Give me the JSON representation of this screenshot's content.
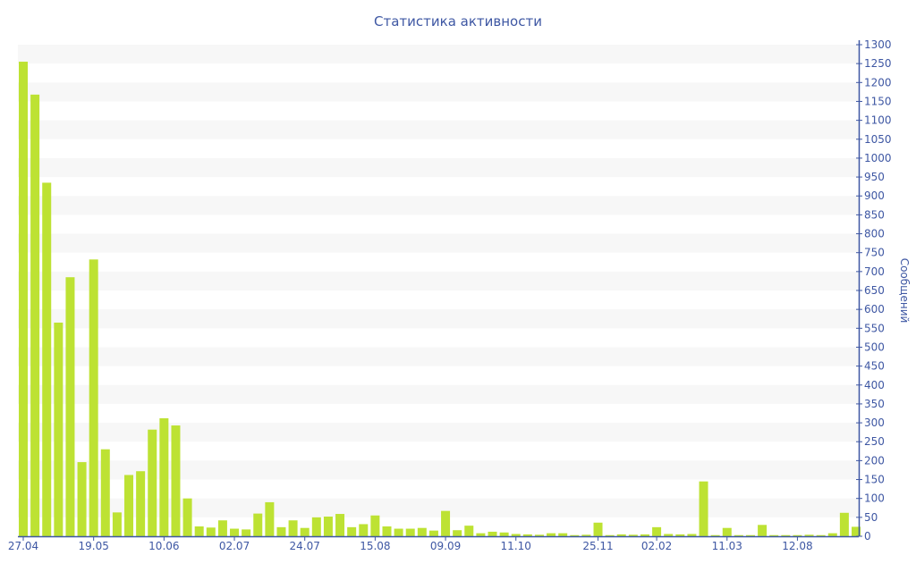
{
  "chart_data": {
    "type": "bar",
    "title": "Статистика активности",
    "ylabel": "Сообщений",
    "xlabel": "",
    "ylim": [
      0,
      1300
    ],
    "ytick_step": 50,
    "y_axis_position": "right",
    "grid": "alternating horizontal bands",
    "bar_color": "#bde233",
    "axis_color": "#3e57a3",
    "values": [
      1255,
      1168,
      935,
      565,
      685,
      196,
      732,
      230,
      63,
      162,
      172,
      282,
      312,
      293,
      100,
      26,
      23,
      42,
      20,
      18,
      60,
      90,
      24,
      42,
      22,
      50,
      52,
      59,
      24,
      32,
      55,
      26,
      20,
      20,
      22,
      15,
      67,
      16,
      28,
      8,
      12,
      10,
      6,
      5,
      4,
      8,
      8,
      3,
      4,
      36,
      3,
      5,
      4,
      5,
      24,
      6,
      5,
      6,
      145,
      3,
      22,
      3,
      3,
      30,
      3,
      3,
      3,
      4,
      3,
      8,
      62,
      25
    ],
    "x_tick_labels": [
      {
        "index": 0,
        "label": "27.04"
      },
      {
        "index": 6,
        "label": "19.05"
      },
      {
        "index": 12,
        "label": "10.06"
      },
      {
        "index": 18,
        "label": "02.07"
      },
      {
        "index": 24,
        "label": "24.07"
      },
      {
        "index": 30,
        "label": "15.08"
      },
      {
        "index": 36,
        "label": "09.09"
      },
      {
        "index": 42,
        "label": "11.10"
      },
      {
        "index": 49,
        "label": "25.11"
      },
      {
        "index": 54,
        "label": "02.02"
      },
      {
        "index": 60,
        "label": "11.03"
      },
      {
        "index": 66,
        "label": "12.08"
      }
    ]
  }
}
